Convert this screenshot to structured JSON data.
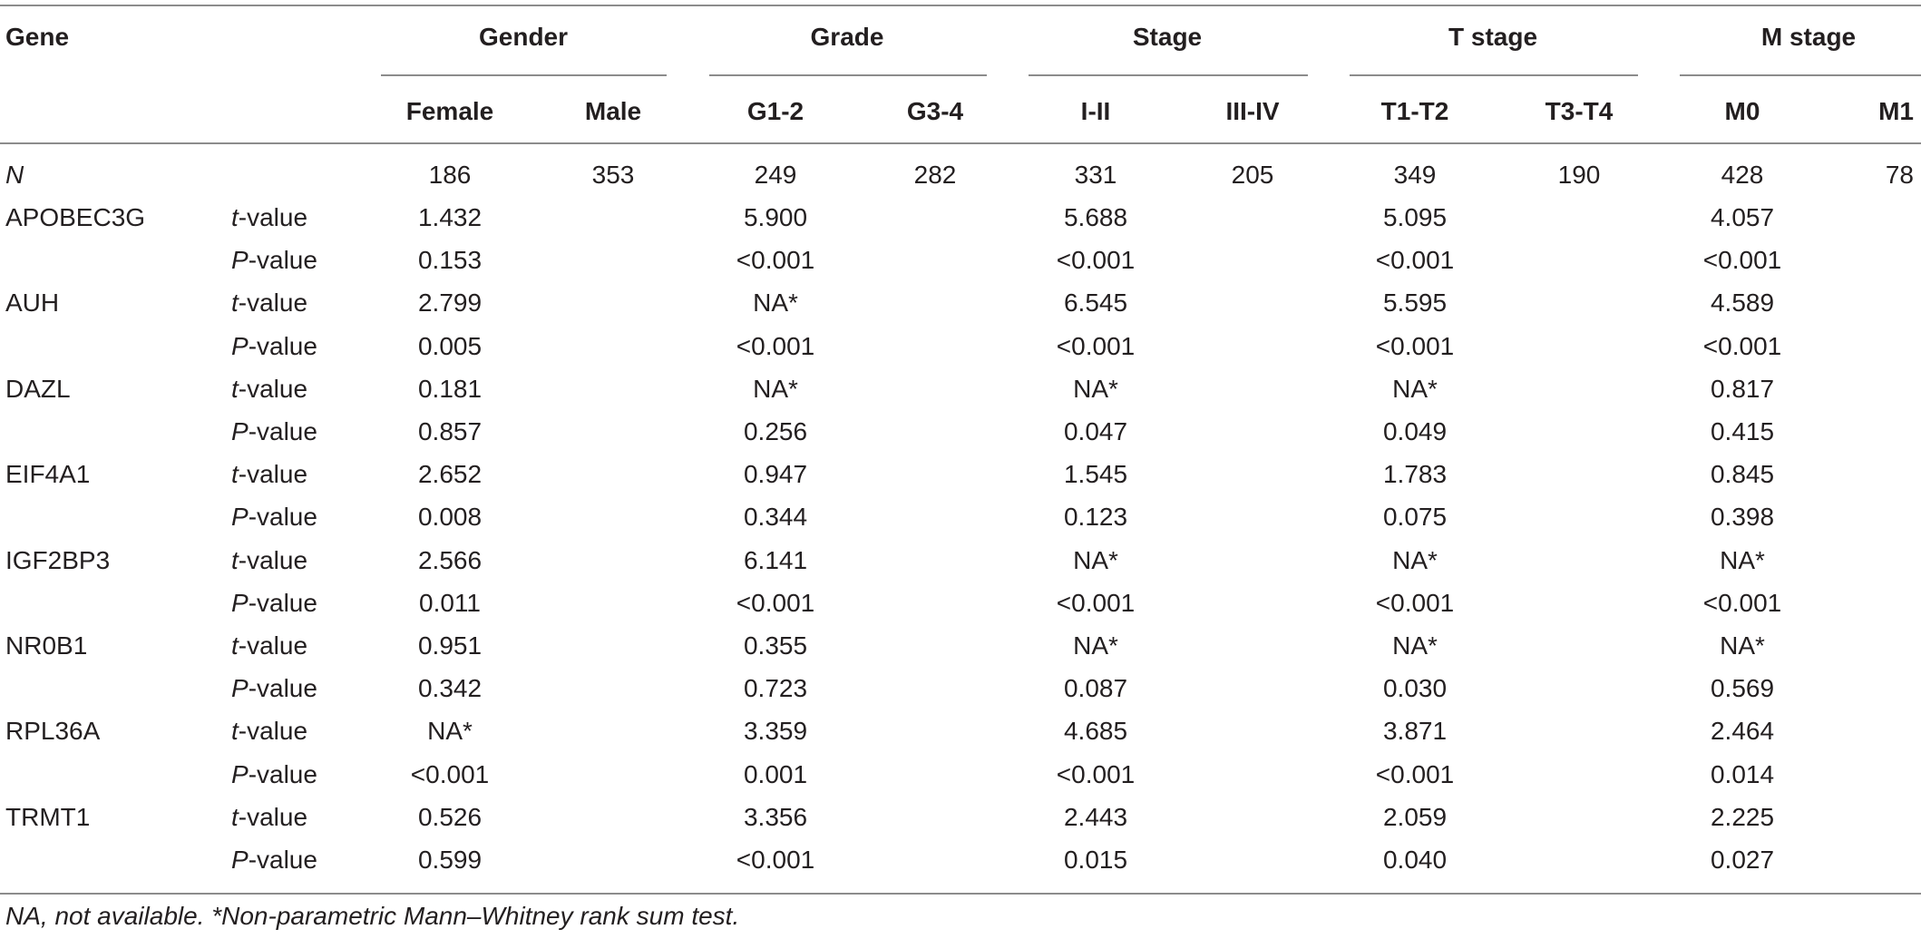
{
  "header": {
    "gene_label": "Gene",
    "groups": [
      {
        "label": "Gender",
        "subs": [
          "Female",
          "Male"
        ]
      },
      {
        "label": "Grade",
        "subs": [
          "G1-2",
          "G3-4"
        ]
      },
      {
        "label": "Stage",
        "subs": [
          "I-II",
          "III-IV"
        ]
      },
      {
        "label": "T stage",
        "subs": [
          "T1-T2",
          "T3-T4"
        ]
      },
      {
        "label": "M stage",
        "subs": [
          "M0",
          "M1"
        ]
      }
    ]
  },
  "n_row": {
    "label": "N",
    "values": [
      "186",
      "353",
      "249",
      "282",
      "331",
      "205",
      "349",
      "190",
      "428",
      "78"
    ]
  },
  "stat_labels": {
    "t_prefix": "t",
    "t_suffix": "-value",
    "p_prefix": "P",
    "p_suffix": "-value"
  },
  "genes": [
    {
      "name": "APOBEC3G",
      "t": [
        "1.432",
        "5.900",
        "5.688",
        "5.095",
        "4.057"
      ],
      "p": [
        "0.153",
        "<0.001",
        "<0.001",
        "<0.001",
        "<0.001"
      ]
    },
    {
      "name": "AUH",
      "t": [
        "2.799",
        "NA*",
        "6.545",
        "5.595",
        "4.589"
      ],
      "p": [
        "0.005",
        "<0.001",
        "<0.001",
        "<0.001",
        "<0.001"
      ]
    },
    {
      "name": "DAZL",
      "t": [
        "0.181",
        "NA*",
        "NA*",
        "NA*",
        "0.817"
      ],
      "p": [
        "0.857",
        "0.256",
        "0.047",
        "0.049",
        "0.415"
      ]
    },
    {
      "name": "EIF4A1",
      "t": [
        "2.652",
        "0.947",
        "1.545",
        "1.783",
        "0.845"
      ],
      "p": [
        "0.008",
        "0.344",
        "0.123",
        "0.075",
        "0.398"
      ]
    },
    {
      "name": "IGF2BP3",
      "t": [
        "2.566",
        "6.141",
        "NA*",
        "NA*",
        "NA*"
      ],
      "p": [
        "0.011",
        "<0.001",
        "<0.001",
        "<0.001",
        "<0.001"
      ]
    },
    {
      "name": "NR0B1",
      "t": [
        "0.951",
        "0.355",
        "NA*",
        "NA*",
        "NA*"
      ],
      "p": [
        "0.342",
        "0.723",
        "0.087",
        "0.030",
        "0.569"
      ]
    },
    {
      "name": "RPL36A",
      "t": [
        "NA*",
        "3.359",
        "4.685",
        "3.871",
        "2.464"
      ],
      "p": [
        "<0.001",
        "0.001",
        "<0.001",
        "<0.001",
        "0.014"
      ]
    },
    {
      "name": "TRMT1",
      "t": [
        "0.526",
        "3.356",
        "2.443",
        "2.059",
        "2.225"
      ],
      "p": [
        "0.599",
        "<0.001",
        "0.015",
        "0.040",
        "0.027"
      ]
    }
  ],
  "footnote": "NA, not available. *Non-parametric Mann–Whitney rank sum test."
}
